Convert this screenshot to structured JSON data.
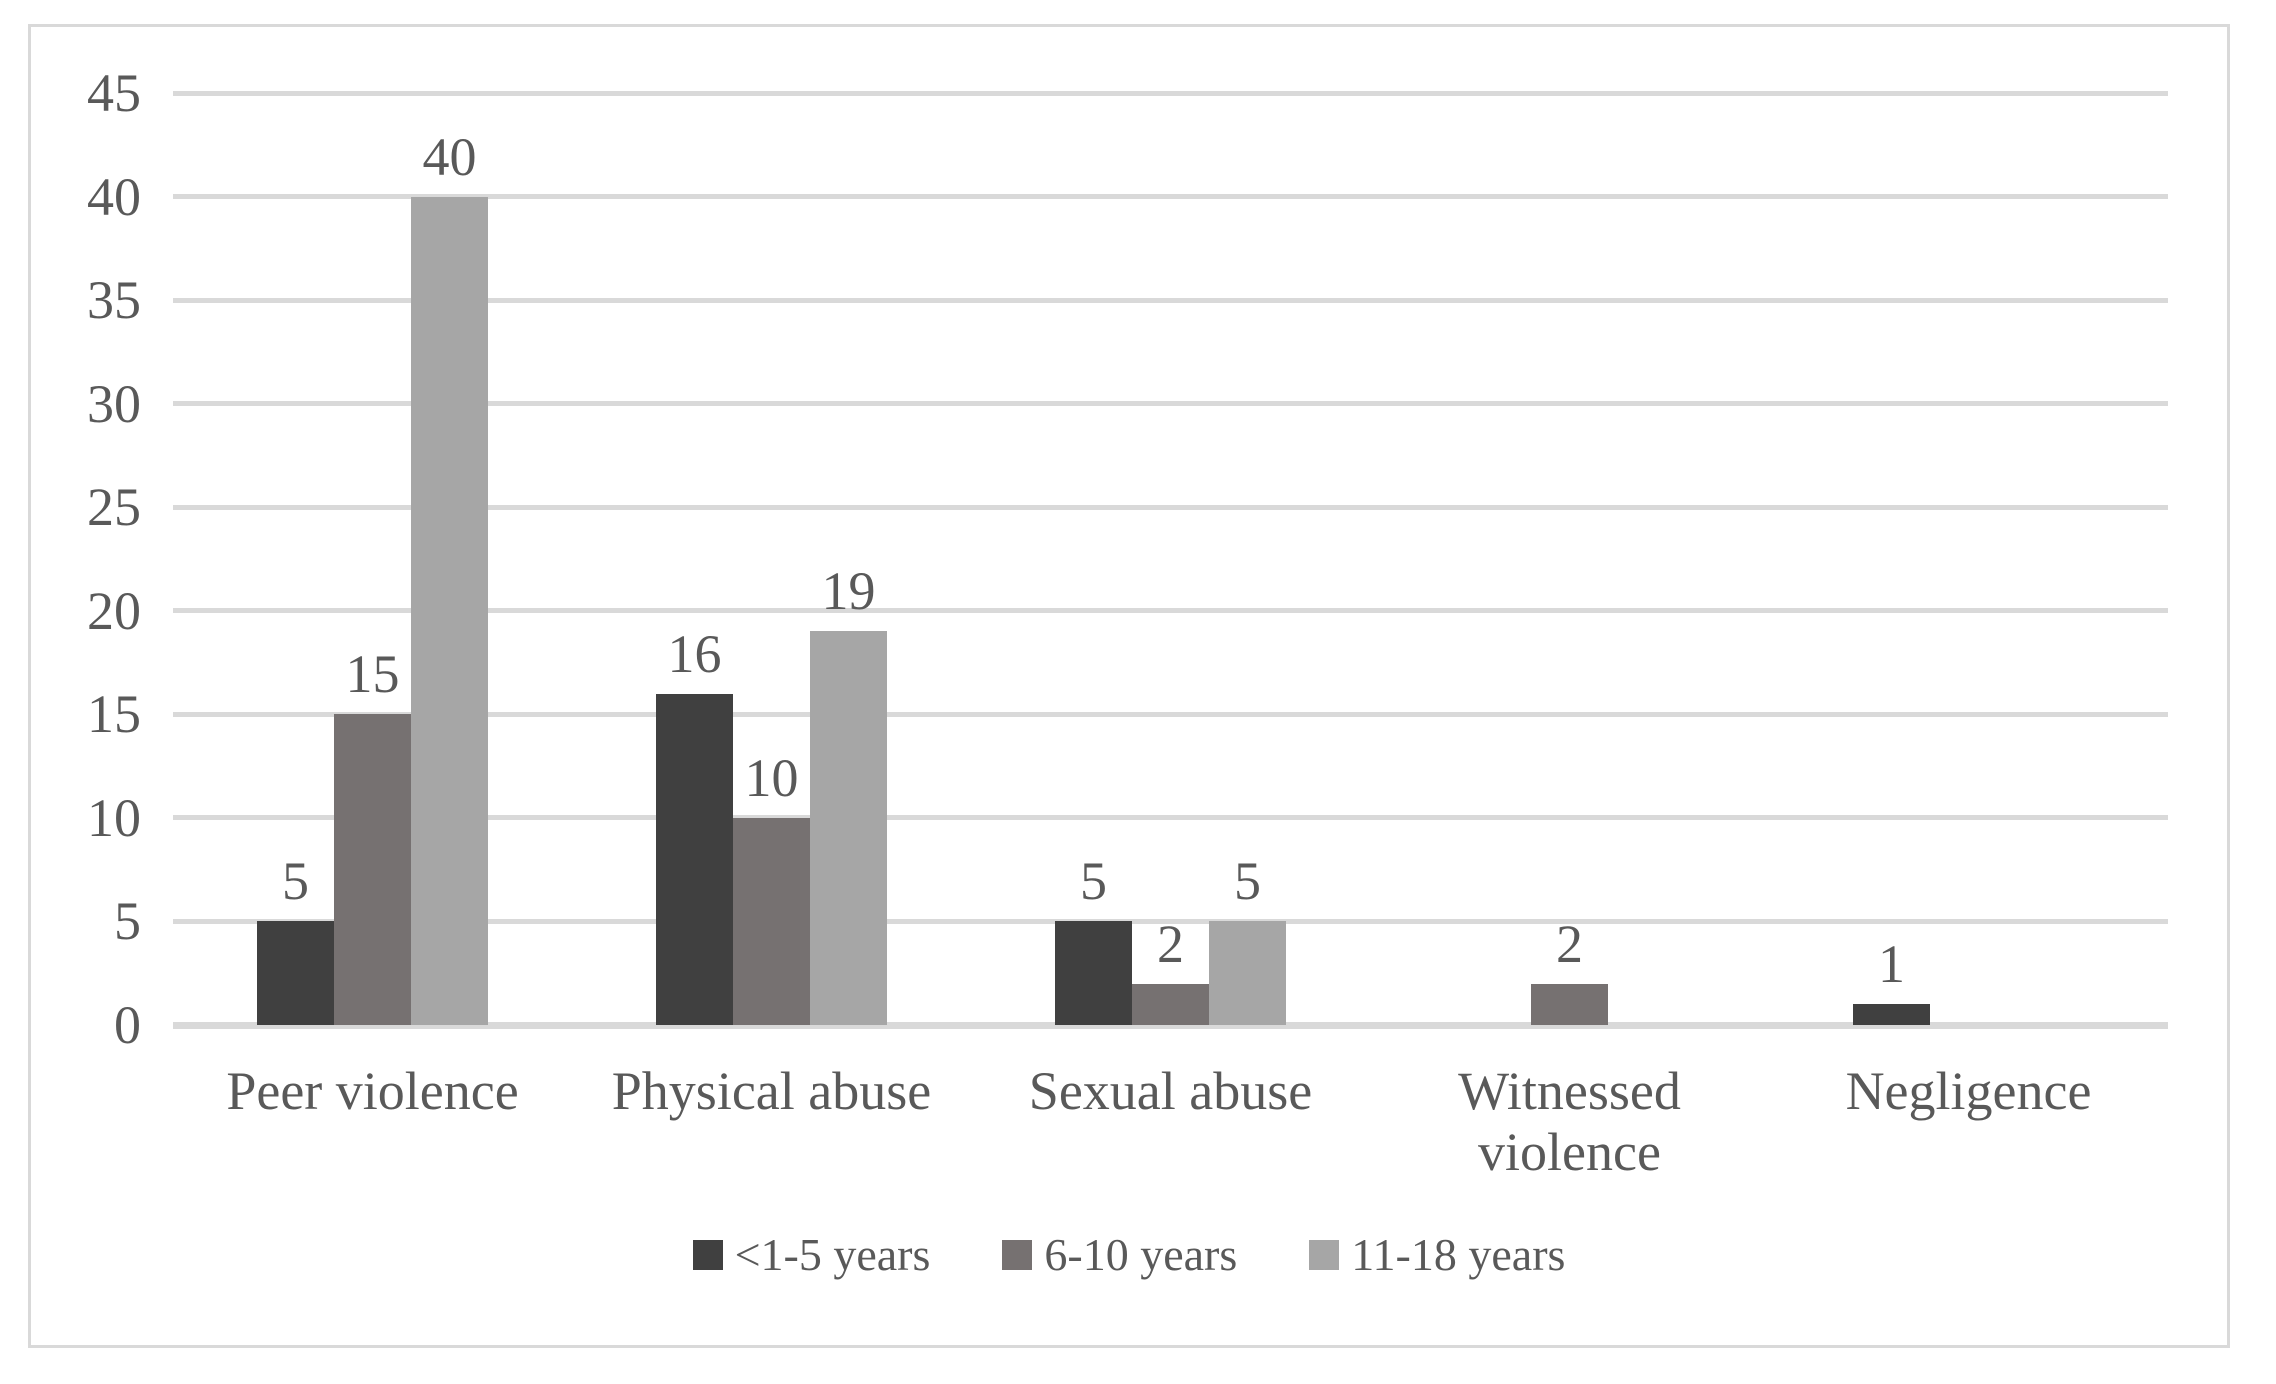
{
  "chart_data": {
    "type": "bar",
    "title": "",
    "xlabel": "",
    "ylabel": "",
    "categories": [
      "Peer violence",
      "Physical abuse",
      "Sexual abuse",
      "Witnessed violence",
      "Negligence"
    ],
    "series": [
      {
        "name": "<1-5 years",
        "color": "#404040",
        "values": [
          5,
          16,
          5,
          null,
          1
        ]
      },
      {
        "name": "6-10 years",
        "color": "#767171",
        "values": [
          15,
          10,
          2,
          2,
          null
        ]
      },
      {
        "name": "11-18 years",
        "color": "#A6A6A6",
        "values": [
          40,
          19,
          5,
          null,
          null
        ]
      }
    ],
    "ylim": [
      0,
      45
    ],
    "yticks": [
      0,
      5,
      10,
      15,
      20,
      25,
      30,
      35,
      40,
      45
    ],
    "grid": true,
    "data_labels": true,
    "legend_position": "bottom",
    "colors": {
      "gridline": "#D9D9D9",
      "axis_line": "#D9D9D9",
      "text": "#595959",
      "frame_border": "#D9D9D9",
      "background": "#FFFFFF"
    }
  }
}
